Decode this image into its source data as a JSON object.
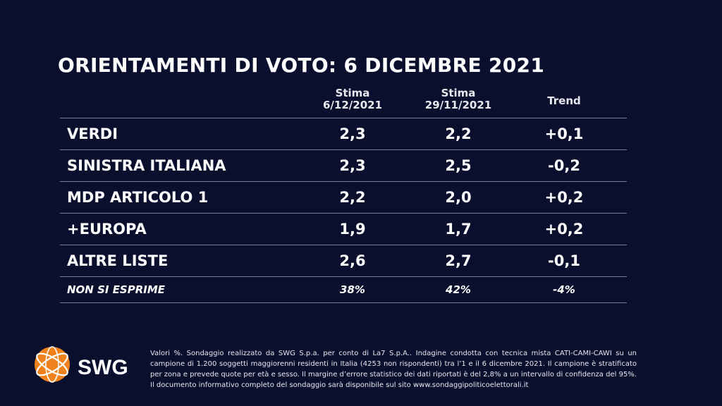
{
  "title": "ORIENTAMENTI DI VOTO: 6 DICEMBRE 2021",
  "chart_data": {
    "type": "table",
    "columns": [
      {
        "line1": "Stima",
        "line2": "6/12/2021"
      },
      {
        "line1": "Stima",
        "line2": "29/11/2021"
      },
      {
        "line1": "Trend",
        "line2": ""
      }
    ],
    "rows": [
      {
        "name": "VERDI",
        "values": [
          "2,3",
          "2,2",
          "+0,1"
        ]
      },
      {
        "name": "SINISTRA ITALIANA",
        "values": [
          "2,3",
          "2,5",
          "-0,2"
        ]
      },
      {
        "name": "MDP ARTICOLO 1",
        "values": [
          "2,2",
          "2,0",
          "+0,2"
        ]
      },
      {
        "name": "+EUROPA",
        "values": [
          "1,9",
          "1,7",
          "+0,2"
        ]
      },
      {
        "name": "ALTRE LISTE",
        "values": [
          "2,6",
          "2,7",
          "-0,1"
        ]
      },
      {
        "name": "NON SI ESPRIME",
        "values": [
          "38%",
          "42%",
          "-4%"
        ]
      }
    ]
  },
  "logo": {
    "text": "SWG",
    "icon": "swg-globe-icon",
    "colors": {
      "orange": "#f0821e",
      "white": "#ffffff"
    }
  },
  "footnote": "Valori %. Sondaggio realizzato da SWG S.p.a. per conto di La7 S.p.A.. Indagine condotta con tecnica mista CATI-CAMI-CAWI su un campione di 1.200 soggetti maggiorenni residenti in Italia (4253 non rispondenti) tra l’1 e il 6 dicembre 2021. Il campione è stratificato per zona e prevede quote per età e sesso. Il margine d’errore statistico dei dati riportati è del 2,8% a un intervallo di confidenza del 95%. Il documento informativo completo del sondaggio sarà disponibile sul sito www.sondaggipoliticoelettorali.it",
  "colors": {
    "background": "#0b0f2e",
    "divider": "#7a7d8f",
    "text": "#ffffff"
  }
}
